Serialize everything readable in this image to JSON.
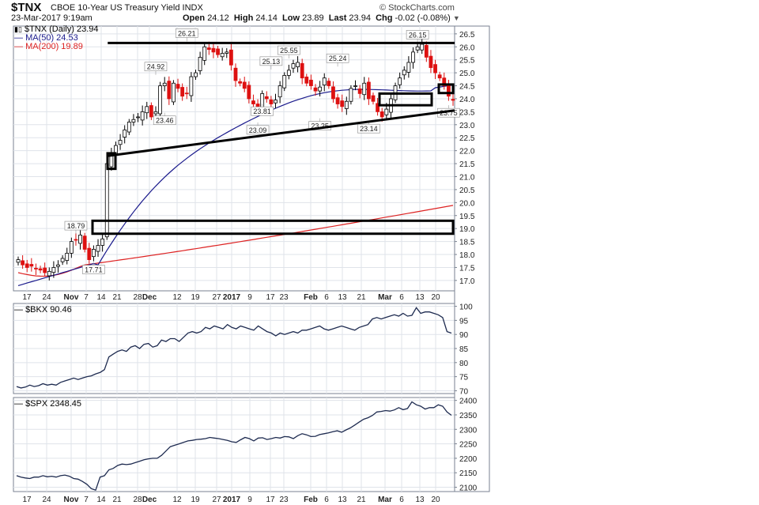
{
  "header": {
    "symbol": "$TNX",
    "description": "CBOE 10-Year US Treasury Yield",
    "exchange": "INDX",
    "date": "23-Mar-2017 9:19am",
    "open_label": "Open",
    "open": "24.12",
    "high_label": "High",
    "high": "24.14",
    "low_label": "Low",
    "low": "23.89",
    "last_label": "Last",
    "last": "23.94",
    "chg_label": "Chg",
    "chg": "-0.02 (-0.08%)",
    "credit": "© StockCharts.com"
  },
  "legend": {
    "main_series": "$TNX (Daily) 23.94",
    "ma50": "MA(50) 24.53",
    "ma200": "MA(200) 19.89",
    "bkx": "$BKX 90.46",
    "spx": "$SPX 2348.45"
  },
  "colors": {
    "up": "#000000",
    "down": "#dd1111",
    "ma50": "#1a1a8c",
    "ma200": "#dd2222",
    "line": "#1e2b50",
    "grid": "#dfe3ea",
    "annotation": "#000000"
  },
  "chart_data": [
    {
      "type": "candlestick",
      "title": "$TNX CBOE 10-Year US Treasury Yield INDX",
      "ylim": [
        16.6,
        26.8
      ],
      "y_ticks": [
        "17.0",
        "17.5",
        "18.0",
        "18.5",
        "19.0",
        "19.5",
        "20.0",
        "20.5",
        "21.0",
        "21.5",
        "22.0",
        "22.5",
        "23.0",
        "23.5",
        "24.0",
        "24.5",
        "25.0",
        "25.5",
        "26.0",
        "26.5"
      ],
      "x_ticks": [
        "17",
        "24",
        "Nov",
        "7",
        "14",
        "21",
        "28",
        "Dec",
        "12",
        "19",
        "27",
        "2017",
        "9",
        "17",
        "23",
        "Feb",
        "6",
        "13",
        "21",
        "Mar",
        "6",
        "13",
        "20"
      ],
      "close": [
        17.8,
        17.6,
        17.5,
        17.55,
        17.45,
        17.4,
        17.3,
        17.35,
        17.5,
        17.6,
        17.85,
        18.05,
        18.5,
        18.55,
        18.75,
        18.2,
        17.8,
        18.2,
        18.35,
        18.6,
        21.5,
        21.9,
        22.2,
        22.4,
        22.8,
        23.1,
        23.2,
        23.3,
        23.5,
        23.7,
        23.3,
        23.5,
        24.5,
        24.6,
        24.0,
        24.6,
        24.4,
        24.1,
        24.2,
        24.85,
        25.0,
        25.6,
        26.0,
        25.9,
        25.8,
        25.7,
        25.75,
        25.8,
        25.3,
        24.7,
        24.6,
        24.4,
        24.0,
        23.8,
        23.6,
        24.2,
        24.0,
        23.8,
        23.95,
        24.5,
        24.9,
        25.1,
        25.35,
        25.4,
        24.8,
        24.6,
        24.5,
        24.3,
        24.45,
        24.8,
        24.5,
        24.0,
        23.8,
        23.7,
        23.9,
        24.4,
        24.5,
        24.2,
        24.6,
        24.0,
        23.9,
        23.5,
        23.3,
        23.6,
        24.0,
        24.5,
        24.8,
        25.1,
        25.4,
        25.8,
        26.0,
        26.1,
        25.6,
        25.2,
        25.0,
        24.8,
        24.5,
        24.1,
        23.94
      ],
      "annotations": [
        "18.79",
        "17.71",
        "24.92",
        "23.46",
        "26.21",
        "25.13",
        "25.55",
        "23.81",
        "23.09",
        "25.24",
        "23.25",
        "23.14",
        "26.15",
        "23.75"
      ],
      "ma50": {
        "name": "MA(50)",
        "value": "24.53"
      },
      "ma200": {
        "name": "MA(200)",
        "value": "19.89"
      }
    },
    {
      "type": "line",
      "series": [
        {
          "name": "$BKX",
          "value": "90.46",
          "values": [
            71.5,
            71.0,
            71.3,
            72.0,
            71.5,
            71.8,
            72.5,
            72.0,
            72.3,
            72.0,
            73.0,
            73.5,
            74.0,
            74.5,
            74.0,
            74.5,
            75.0,
            75.3,
            76.0,
            76.5,
            77.5,
            82.0,
            83.0,
            84.0,
            84.5,
            84.0,
            85.5,
            86.0,
            85.0,
            86.5,
            86.8,
            85.5,
            86.0,
            88.0,
            87.5,
            88.5,
            88.5,
            87.5,
            89.0,
            90.5,
            91.0,
            90.5,
            91.0,
            92.5,
            92.0,
            93.0,
            92.5,
            92.0,
            93.5,
            92.5,
            92.0,
            93.0,
            92.5,
            92.0,
            91.5,
            93.0,
            92.0,
            91.0,
            90.5,
            89.5,
            90.5,
            90.0,
            90.5,
            91.0,
            90.5,
            91.5,
            91.5,
            92.0,
            92.5,
            93.0,
            92.0,
            91.5,
            92.0,
            92.5,
            93.0,
            92.5,
            92.0,
            91.5,
            92.5,
            93.0,
            93.5,
            95.5,
            96.0,
            95.5,
            96.0,
            96.5,
            97.0,
            96.5,
            97.5,
            96.5,
            96.8,
            99.5,
            97.5,
            98.0,
            98.0,
            97.5,
            97.0,
            96.0,
            91.0,
            90.46
          ]
        }
      ],
      "ylim": [
        69,
        101
      ],
      "y_ticks": [
        "70",
        "75",
        "80",
        "85",
        "90",
        "95",
        "100"
      ]
    },
    {
      "type": "line",
      "series": [
        {
          "name": "$SPX",
          "value": "2348.45",
          "values": [
            2140,
            2135,
            2132,
            2130,
            2135,
            2135,
            2140,
            2136,
            2138,
            2135,
            2140,
            2142,
            2138,
            2130,
            2128,
            2120,
            2110,
            2095,
            2090,
            2135,
            2140,
            2160,
            2165,
            2175,
            2180,
            2178,
            2180,
            2185,
            2190,
            2195,
            2198,
            2200,
            2200,
            2210,
            2225,
            2240,
            2245,
            2250,
            2255,
            2260,
            2262,
            2265,
            2266,
            2268,
            2272,
            2270,
            2268,
            2265,
            2262,
            2257,
            2255,
            2264,
            2272,
            2268,
            2260,
            2270,
            2271,
            2265,
            2268,
            2272,
            2270,
            2275,
            2274,
            2268,
            2278,
            2285,
            2281,
            2275,
            2276,
            2282,
            2285,
            2288,
            2292,
            2295,
            2290,
            2298,
            2305,
            2315,
            2325,
            2335,
            2340,
            2348,
            2360,
            2362,
            2365,
            2363,
            2367,
            2375,
            2368,
            2372,
            2395,
            2385,
            2380,
            2370,
            2375,
            2375,
            2385,
            2380,
            2360,
            2348.45
          ]
        }
      ],
      "ylim": [
        2085,
        2410
      ],
      "y_ticks": [
        "2100",
        "2150",
        "2200",
        "2250",
        "2300",
        "2350",
        "2400"
      ]
    }
  ]
}
